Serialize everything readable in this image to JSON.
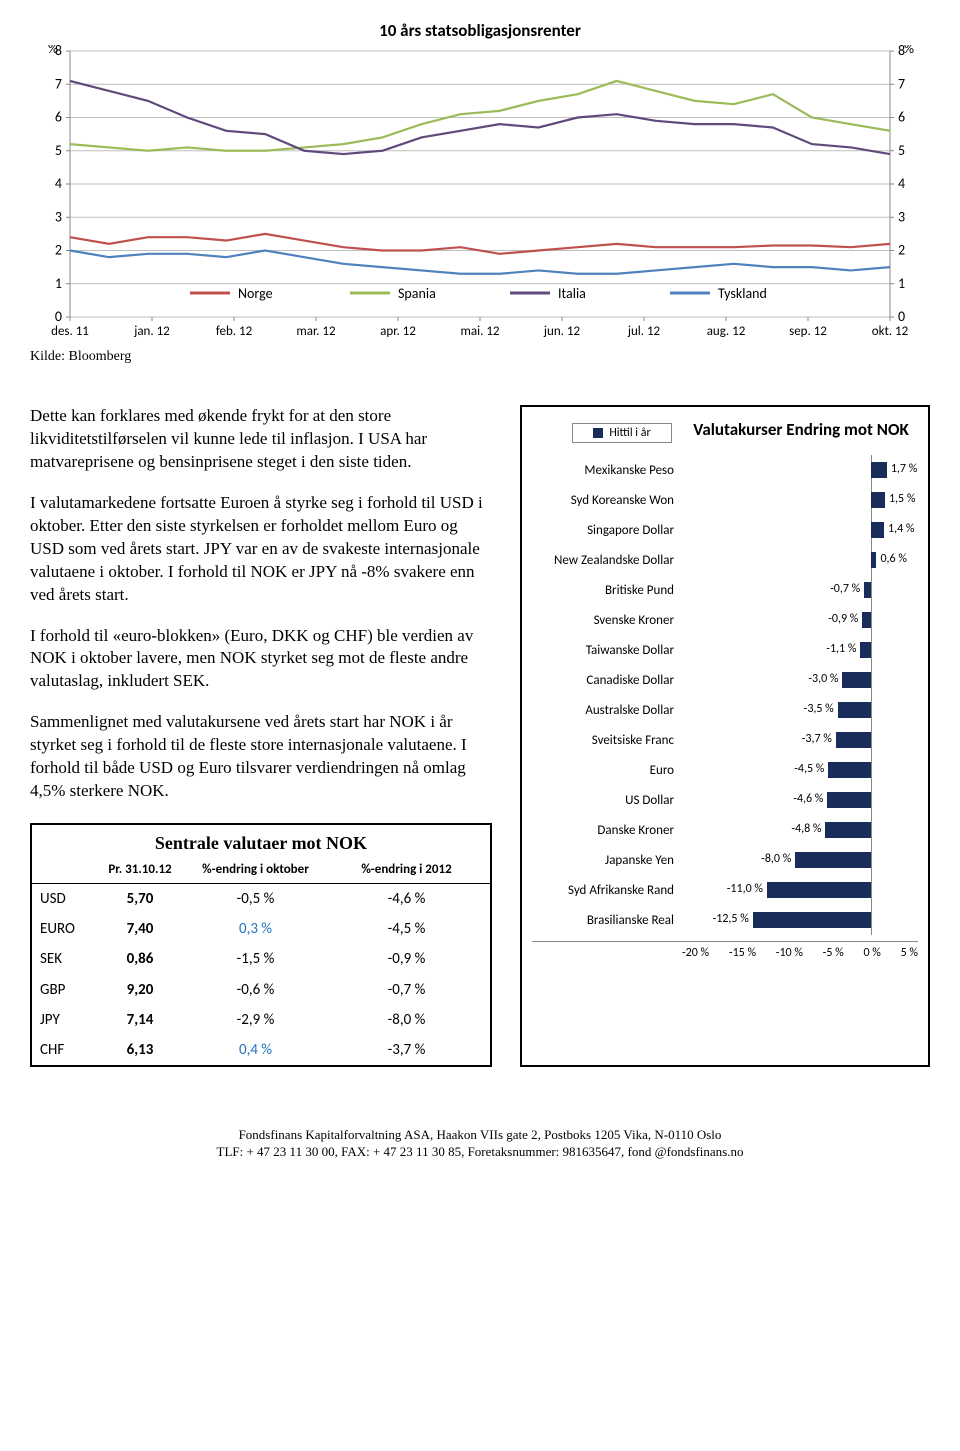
{
  "lineChart": {
    "title": "10 års statsobligasjonsrenter",
    "yLabelLeft": "%",
    "yLabelRight": "%",
    "yTicks": [
      0,
      1,
      2,
      3,
      4,
      5,
      6,
      7,
      8
    ],
    "xLabels": [
      "des. 11",
      "jan. 12",
      "feb. 12",
      "mar. 12",
      "apr. 12",
      "mai. 12",
      "jun. 12",
      "jul. 12",
      "aug. 12",
      "sep. 12",
      "okt. 12"
    ],
    "legend": [
      "Norge",
      "Spania",
      "Italia",
      "Tyskland"
    ],
    "colors": {
      "Norge": "#c0504d",
      "Spania": "#9bbb59",
      "Italia": "#604a7b",
      "Tyskland": "#4f81bd"
    },
    "grid_color": "#bfbfbf",
    "series": {
      "Norge": [
        2.4,
        2.2,
        2.4,
        2.4,
        2.3,
        2.5,
        2.3,
        2.1,
        2.0,
        2.0,
        2.1,
        1.9,
        2.0,
        2.1,
        2.2,
        2.1,
        2.1,
        2.1,
        2.15,
        2.15,
        2.1,
        2.2
      ],
      "Tyskland": [
        2.0,
        1.8,
        1.9,
        1.9,
        1.8,
        2.0,
        1.8,
        1.6,
        1.5,
        1.4,
        1.3,
        1.3,
        1.4,
        1.3,
        1.3,
        1.4,
        1.5,
        1.6,
        1.5,
        1.5,
        1.4,
        1.5
      ],
      "Spania": [
        5.2,
        5.1,
        5.0,
        5.1,
        5.0,
        5.0,
        5.1,
        5.2,
        5.4,
        5.8,
        6.1,
        6.2,
        6.5,
        6.7,
        7.1,
        6.8,
        6.5,
        6.4,
        6.7,
        6.0,
        5.8,
        5.6
      ],
      "Italia": [
        7.1,
        6.8,
        6.5,
        6.0,
        5.6,
        5.5,
        5.0,
        4.9,
        5.0,
        5.4,
        5.6,
        5.8,
        5.7,
        6.0,
        6.1,
        5.9,
        5.8,
        5.8,
        5.7,
        5.2,
        5.1,
        4.9
      ]
    }
  },
  "source": "Kilde: Bloomberg",
  "paragraphs": [
    "Dette kan forklares med økende frykt for at den store likviditetstilførselen vil kunne lede til inflasjon. I USA har matvareprisene og bensinprisene steget i den siste tiden.",
    "I valutamarkedene fortsatte Euroen å styrke seg i forhold til USD i oktober. Etter den siste styrkelsen er forholdet mellom Euro og USD som ved årets start. JPY var en av de svakeste internasjonale valutaene i oktober. I forhold til NOK er JPY nå -8% svakere enn ved årets start.",
    "I forhold til «euro-blokken» (Euro, DKK og CHF) ble verdien av NOK i oktober lavere, men NOK styrket seg mot de fleste andre valutaslag, inkludert SEK.",
    "Sammenlignet med valutakursene ved årets start har NOK i år styrket seg i forhold til de fleste store internasjonale valutaene. I forhold til både USD og Euro tilsvarer verdiendringen nå omlag 4,5% sterkere NOK."
  ],
  "fxTable": {
    "title": "Sentrale valutaer mot NOK",
    "headers": {
      "date": "Pr. 31.10.12",
      "col1": "%-endring i oktober",
      "col2": "%-endring i  2012"
    },
    "rows": [
      {
        "code": "USD",
        "rate": "5,70",
        "m": "-0,5 %",
        "mColor": "#000",
        "y": "-4,6 %"
      },
      {
        "code": "EURO",
        "rate": "7,40",
        "m": "0,3 %",
        "mColor": "#1f72c0",
        "y": "-4,5 %"
      },
      {
        "code": "SEK",
        "rate": "0,86",
        "m": "-1,5 %",
        "mColor": "#000",
        "y": "-0,9 %"
      },
      {
        "code": "GBP",
        "rate": "9,20",
        "m": "-0,6 %",
        "mColor": "#000",
        "y": "-0,7 %"
      },
      {
        "code": "JPY",
        "rate": "7,14",
        "m": "-2,9 %",
        "mColor": "#000",
        "y": "-8,0 %"
      },
      {
        "code": "CHF",
        "rate": "6,13",
        "m": "0,4 %",
        "mColor": "#1f72c0",
        "y": "-3,7 %"
      }
    ]
  },
  "barChart": {
    "title": "Valutakurser Endring mot NOK",
    "legend": "Hittil i år",
    "barColor": "#1a2d5a",
    "xMin": -20,
    "xMax": 5,
    "xStep": 5,
    "xTickLabels": [
      "-20 %",
      "-15 %",
      "-10 %",
      "-5 %",
      "0 %",
      "5 %"
    ],
    "items": [
      {
        "label": "Mexikanske Peso",
        "value": 1.7,
        "text": "1,7 %"
      },
      {
        "label": "Syd Koreanske Won",
        "value": 1.5,
        "text": "1,5 %"
      },
      {
        "label": "Singapore Dollar",
        "value": 1.4,
        "text": "1,4 %"
      },
      {
        "label": "New Zealandske Dollar",
        "value": 0.6,
        "text": "0,6 %"
      },
      {
        "label": "Britiske Pund",
        "value": -0.7,
        "text": "-0,7 %"
      },
      {
        "label": "Svenske Kroner",
        "value": -0.9,
        "text": "-0,9 %"
      },
      {
        "label": "Taiwanske Dollar",
        "value": -1.1,
        "text": "-1,1 %"
      },
      {
        "label": "Canadiske Dollar",
        "value": -3.0,
        "text": "-3,0 %"
      },
      {
        "label": "Australske Dollar",
        "value": -3.5,
        "text": "-3,5 %"
      },
      {
        "label": "Sveitsiske Franc",
        "value": -3.7,
        "text": "-3,7 %"
      },
      {
        "label": "Euro",
        "value": -4.5,
        "text": "-4,5 %"
      },
      {
        "label": "US Dollar",
        "value": -4.6,
        "text": "-4,6 %"
      },
      {
        "label": "Danske Kroner",
        "value": -4.8,
        "text": "-4,8 %"
      },
      {
        "label": "Japanske Yen",
        "value": -8.0,
        "text": "-8,0 %"
      },
      {
        "label": "Syd Afrikanske Rand",
        "value": -11.0,
        "text": "-11,0 %"
      },
      {
        "label": "Brasilianske Real",
        "value": -12.5,
        "text": "-12,5 %"
      }
    ]
  },
  "footer": {
    "line1": "Fondsfinans Kapitalforvaltning ASA, Haakon VIIs gate 2, Postboks 1205 Vika, N-0110 Oslo",
    "line2": "TLF: + 47 23 11 30 00, FAX: + 47 23 11 30 85, Foretaksnummer: 981635647, fond @fondsfinans.no"
  }
}
